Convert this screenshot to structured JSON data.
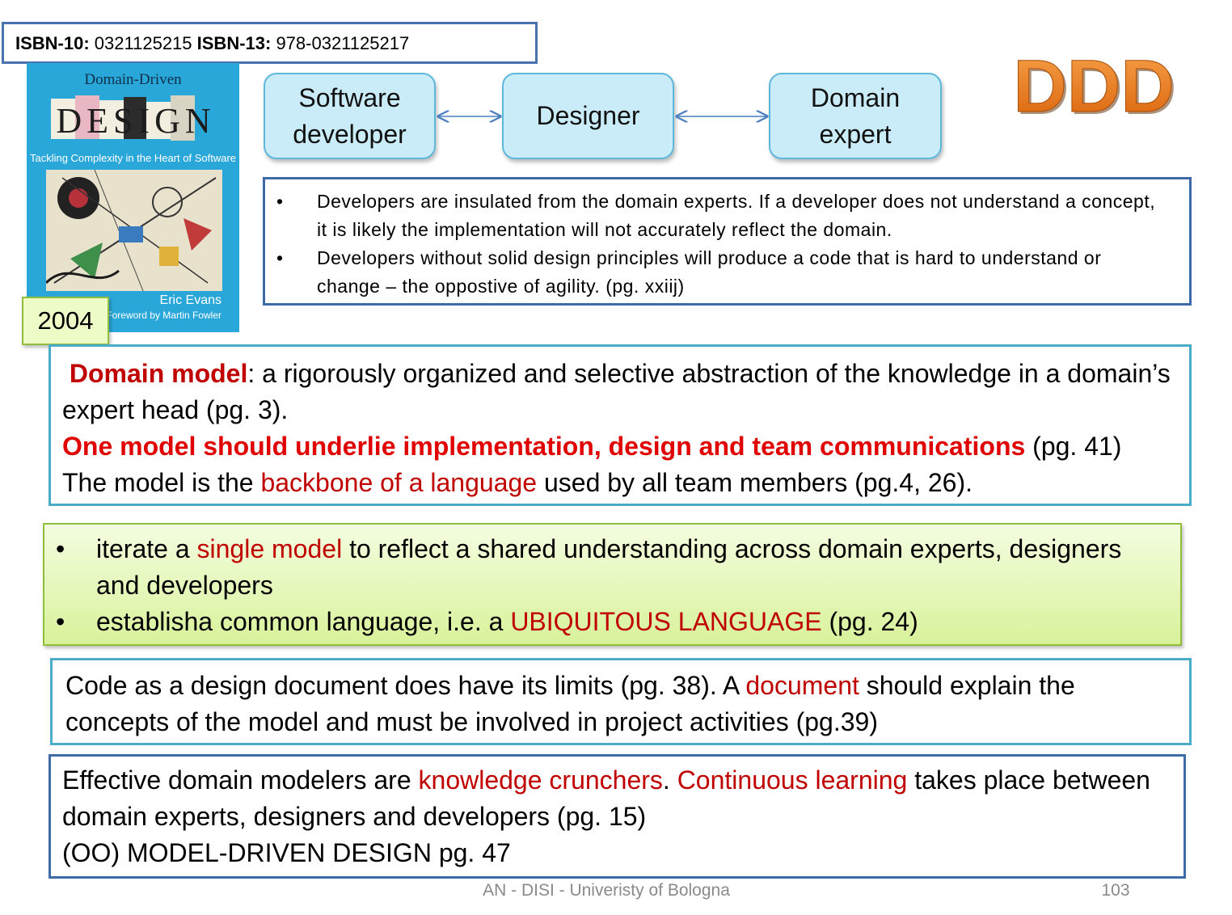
{
  "isbn": {
    "isbn10_label": "ISBN-10:",
    "isbn10_value": " 0321125215 ",
    "isbn13_label": "ISBN-13:",
    "isbn13_value": " 978-0321125217"
  },
  "book": {
    "top_title": "Domain-Driven",
    "big_title": "DESIGN",
    "subtitle": "Tackling Complexity in the Heart of Software",
    "author": "Eric Evans",
    "foreword": "Foreword by Martin Fowler"
  },
  "year": "2004",
  "flow": {
    "box1_line1": "Software",
    "box1_line2": "developer",
    "box2": "Designer",
    "box3_line1": "Domain",
    "box3_line2": "expert"
  },
  "logo": "DDD",
  "bullets": [
    "Developers are insulated from the domain experts.  If a developer does not understand a concept, it is likely the implementation will not accurately reflect the domain.",
    "Developers without solid design principles will produce a code that is hard to understand or change – the oppostive of agility. (pg. xxiij)"
  ],
  "model_box": {
    "term": "Domain model",
    "definition": ": a rigorously organized and selective abstraction of the knowledge in a domain’s expert head (pg. 3).",
    "emphasis": "One model should underlie implementation, design and team communications",
    "emphasis_ref": " (pg. 41)",
    "line3_a": "The model is the ",
    "line3_highlight": "backbone of a language",
    "line3_b": " used by all team members (pg.4, 26)."
  },
  "iterate_box": {
    "item1_a": "iterate a ",
    "item1_highlight": "single model",
    "item1_b": " to reflect a shared understanding across domain experts, designers and developers",
    "item2_a": "establisha common language, i.e. a  ",
    "item2_highlight": "UBIQUITOUS LANGUAGE",
    "item2_b": " (pg. 24)"
  },
  "code_box": {
    "text_a": "Code as a design document does have its limits (pg. 38). A ",
    "highlight": "document",
    "text_b": " should explain the concepts of the model and must be involved in project activities (pg.39)"
  },
  "crunch_box": {
    "text_a": "Effective domain modelers are ",
    "highlight1": "knowledge crunchers",
    "text_b": ". ",
    "highlight2": "Continuous learning",
    "text_c": " takes place between domain experts, designers and developers (pg. 15)",
    "line2": "(OO) MODEL-DRIVEN DESIGN pg. 47"
  },
  "footer": {
    "credit": "AN  - DISI - Univeristy of Bologna",
    "page_number": "103"
  },
  "colors": {
    "highlight_red": "#c00000",
    "logo_orange": "#e46c0a",
    "flow_box_fill": "#c9ecf8",
    "green_box_fill": "#d8f29a"
  }
}
